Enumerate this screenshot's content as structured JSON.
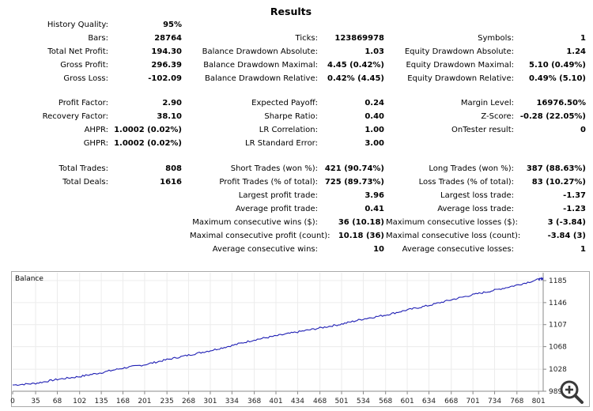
{
  "title": "Results",
  "rows": [
    {
      "top": 26,
      "c1": [
        "History Quality:",
        "95%"
      ]
    },
    {
      "top": 43,
      "c1": [
        "Bars:",
        "28764"
      ],
      "c2": [
        "Ticks:",
        "123869978"
      ],
      "c3": [
        "Symbols:",
        "1"
      ]
    },
    {
      "top": 60,
      "c1": [
        "Total Net Profit:",
        "194.30"
      ],
      "c2": [
        "Balance Drawdown Absolute:",
        "1.03"
      ],
      "c3": [
        "Equity Drawdown Absolute:",
        "1.24"
      ]
    },
    {
      "top": 77,
      "c1": [
        "Gross Profit:",
        "296.39"
      ],
      "c2": [
        "Balance Drawdown Maximal:",
        "4.45 (0.42%)"
      ],
      "c3": [
        "Equity Drawdown Maximal:",
        "5.10 (0.49%)"
      ]
    },
    {
      "top": 94,
      "c1": [
        "Gross Loss:",
        "-102.09"
      ],
      "c2": [
        "Balance Drawdown Relative:",
        "0.42% (4.45)"
      ],
      "c3": [
        "Equity Drawdown Relative:",
        "0.49% (5.10)"
      ]
    },
    {
      "top": 125,
      "c1": [
        "Profit Factor:",
        "2.90"
      ],
      "c2": [
        "Expected Payoff:",
        "0.24"
      ],
      "c3": [
        "Margin Level:",
        "16976.50%"
      ]
    },
    {
      "top": 142,
      "c1": [
        "Recovery Factor:",
        "38.10"
      ],
      "c2": [
        "Sharpe Ratio:",
        "0.40"
      ],
      "c3": [
        "Z-Score:",
        "-0.28 (22.05%)"
      ]
    },
    {
      "top": 159,
      "c1": [
        "AHPR:",
        "1.0002 (0.02%)"
      ],
      "c2": [
        "LR Correlation:",
        "1.00"
      ],
      "c3": [
        "OnTester result:",
        "0"
      ]
    },
    {
      "top": 176,
      "c1": [
        "GHPR:",
        "1.0002 (0.02%)"
      ],
      "c2": [
        "LR Standard Error:",
        "3.00"
      ]
    },
    {
      "top": 208,
      "c1": [
        "Total Trades:",
        "808"
      ],
      "c2": [
        "Short Trades (won %):",
        "421 (90.74%)"
      ],
      "c3": [
        "Long Trades (won %):",
        "387 (88.63%)"
      ]
    },
    {
      "top": 225,
      "c1": [
        "Total Deals:",
        "1616"
      ],
      "c2": [
        "Profit Trades (% of total):",
        "725 (89.73%)"
      ],
      "c3": [
        "Loss Trades (% of total):",
        "83 (10.27%)"
      ]
    },
    {
      "top": 242,
      "c2": [
        "Largest profit trade:",
        "3.96"
      ],
      "c3": [
        "Largest loss trade:",
        "-1.37"
      ]
    },
    {
      "top": 259,
      "c2": [
        "Average profit trade:",
        "0.41"
      ],
      "c3": [
        "Average loss trade:",
        "-1.23"
      ]
    },
    {
      "top": 276,
      "c2": [
        "Maximum consecutive wins ($):",
        "36 (10.18)"
      ],
      "c3": [
        "Maximum consecutive losses ($):",
        "3 (-3.84)"
      ]
    },
    {
      "top": 293,
      "c2": [
        "Maximal consecutive profit (count):",
        "10.18 (36)"
      ],
      "c3": [
        "Maximal consecutive loss (count):",
        "-3.84 (3)"
      ]
    },
    {
      "top": 310,
      "c2": [
        "Average consecutive wins:",
        "10"
      ],
      "c3": [
        "Average consecutive losses:",
        "1"
      ]
    }
  ],
  "chart_data": {
    "type": "line",
    "title": "Balance",
    "series": [
      {
        "name": "Balance",
        "color": "#1f1fb4"
      }
    ],
    "x_ticks": [
      "0",
      "35",
      "68",
      "102",
      "135",
      "168",
      "201",
      "235",
      "268",
      "301",
      "334",
      "368",
      "401",
      "434",
      "468",
      "501",
      "534",
      "568",
      "601",
      "634",
      "668",
      "701",
      "734",
      "768",
      "801"
    ],
    "y_ticks": [
      "989",
      "1028",
      "1068",
      "1107",
      "1146",
      "1185"
    ],
    "x_range": [
      0,
      808
    ],
    "y_range": [
      989,
      1199
    ],
    "points": [
      [
        0,
        1000
      ],
      [
        35,
        1003
      ],
      [
        68,
        1010
      ],
      [
        102,
        1015
      ],
      [
        135,
        1022
      ],
      [
        168,
        1030
      ],
      [
        201,
        1036
      ],
      [
        235,
        1045
      ],
      [
        268,
        1053
      ],
      [
        301,
        1061
      ],
      [
        334,
        1070
      ],
      [
        368,
        1080
      ],
      [
        401,
        1087
      ],
      [
        434,
        1094
      ],
      [
        468,
        1101
      ],
      [
        501,
        1108
      ],
      [
        534,
        1117
      ],
      [
        568,
        1124
      ],
      [
        601,
        1133
      ],
      [
        634,
        1141
      ],
      [
        668,
        1151
      ],
      [
        701,
        1160
      ],
      [
        734,
        1168
      ],
      [
        768,
        1177
      ],
      [
        801,
        1187
      ],
      [
        808,
        1189
      ]
    ]
  },
  "zoom_icon": "magnifier-plus-icon"
}
